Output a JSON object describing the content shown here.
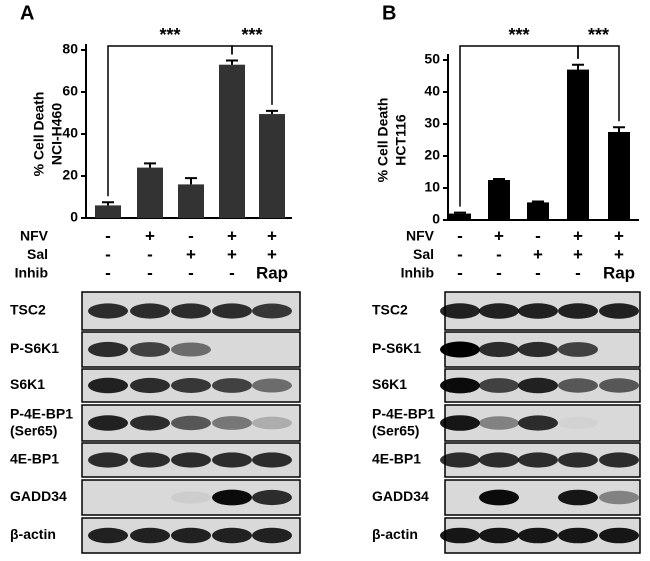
{
  "chart_data": [
    {
      "type": "bar",
      "panel": "A",
      "y_label": [
        "% Cell Death",
        "NCI-H460"
      ],
      "values": [
        6,
        24,
        16,
        73,
        49.5
      ],
      "errors": [
        1.5,
        2,
        3,
        2,
        1.5
      ],
      "color": "#333333",
      "ylim": [
        0,
        80
      ],
      "yticks": [
        0,
        20,
        40,
        60,
        80
      ],
      "significance": [
        "***",
        "***"
      ],
      "conditions": [
        {
          "name": "NFV",
          "values": [
            "-",
            "+",
            "-",
            "+",
            "+"
          ]
        },
        {
          "name": "Sal",
          "values": [
            "-",
            "-",
            "+",
            "+",
            "+"
          ]
        },
        {
          "name": "Inhib",
          "values": [
            "-",
            "-",
            "-",
            "-",
            "Rap"
          ]
        }
      ],
      "blots": [
        "TSC2",
        "P-S6K1",
        "S6K1",
        [
          "P-4E-BP1",
          "(Ser65)"
        ],
        "4E-BP1",
        "GADD34",
        "β-actin"
      ]
    },
    {
      "type": "bar",
      "panel": "B",
      "y_label": [
        "% Cell Death",
        "HCT116"
      ],
      "values": [
        2,
        12.5,
        5.5,
        47,
        27.5
      ],
      "errors": [
        0.3,
        0.3,
        0.3,
        1.5,
        1.5
      ],
      "color": "#000000",
      "ylim": [
        0,
        50
      ],
      "yticks": [
        0,
        10,
        20,
        30,
        40,
        50
      ],
      "significance": [
        "***",
        "***"
      ],
      "conditions": [
        {
          "name": "NFV",
          "values": [
            "-",
            "+",
            "-",
            "+",
            "+"
          ]
        },
        {
          "name": "Sal",
          "values": [
            "-",
            "-",
            "+",
            "+",
            "+"
          ]
        },
        {
          "name": "Inhib",
          "values": [
            "-",
            "-",
            "-",
            "-",
            "Rap"
          ]
        }
      ],
      "blots": [
        "TSC2",
        "P-S6K1",
        "S6K1",
        [
          "P-4E-BP1",
          "(Ser65)"
        ],
        "4E-BP1",
        "GADD34",
        "β-actin"
      ]
    }
  ]
}
